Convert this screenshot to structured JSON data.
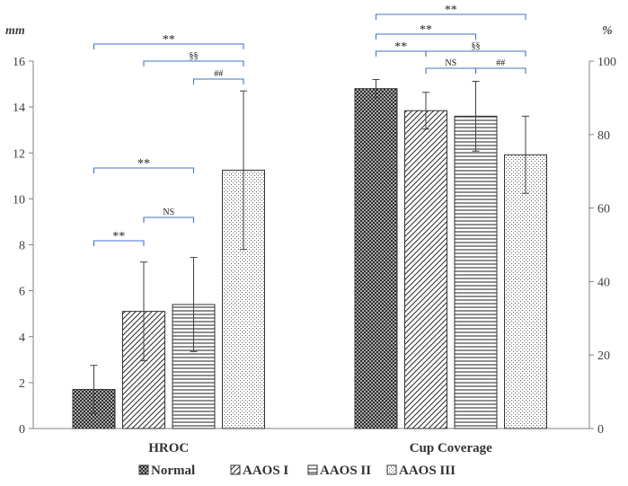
{
  "chart_data": {
    "type": "bar",
    "categories": [
      "HROC",
      "Cup Coverage"
    ],
    "series": [
      {
        "name": "Normal",
        "values": [
          1.7,
          92.5
        ],
        "errors": [
          1.05,
          2.5
        ],
        "pattern": "crosshatch"
      },
      {
        "name": "AAOS I",
        "values": [
          5.1,
          86.5
        ],
        "errors": [
          2.15,
          5.0
        ],
        "pattern": "diagonal"
      },
      {
        "name": "AAOS II",
        "values": [
          5.4,
          85.0
        ],
        "errors": [
          2.05,
          9.5
        ],
        "pattern": "horizontal"
      },
      {
        "name": "AAOS III",
        "values": [
          11.25,
          74.5
        ],
        "errors": [
          3.45,
          10.5
        ],
        "pattern": "dots"
      }
    ],
    "axes": {
      "left": {
        "unit": "mm",
        "min": 0,
        "max": 16,
        "step": 2,
        "ticks": [
          "0",
          "2",
          "4",
          "6",
          "8",
          "10",
          "12",
          "14",
          "16"
        ],
        "applies_to": "HROC"
      },
      "right": {
        "unit": "%",
        "min": 0,
        "max": 100,
        "step": 20,
        "ticks": [
          "0",
          "20",
          "40",
          "60",
          "80",
          "100"
        ],
        "applies_to": "Cup Coverage"
      }
    },
    "significance": [
      {
        "category": "HROC",
        "from": 0,
        "to": 3,
        "label": "**"
      },
      {
        "category": "HROC",
        "from": 1,
        "to": 3,
        "label": "§§"
      },
      {
        "category": "HROC",
        "from": 2,
        "to": 3,
        "label": "##"
      },
      {
        "category": "HROC",
        "from": 0,
        "to": 2,
        "label": "**"
      },
      {
        "category": "HROC",
        "from": 1,
        "to": 2,
        "label": "NS"
      },
      {
        "category": "HROC",
        "from": 0,
        "to": 1,
        "label": "**"
      },
      {
        "category": "Cup Coverage",
        "from": 0,
        "to": 3,
        "label": "**"
      },
      {
        "category": "Cup Coverage",
        "from": 0,
        "to": 2,
        "label": "**"
      },
      {
        "category": "Cup Coverage",
        "from": 0,
        "to": 1,
        "label": "**"
      },
      {
        "category": "Cup Coverage",
        "from": 1,
        "to": 3,
        "label": "§§"
      },
      {
        "category": "Cup Coverage",
        "from": 1,
        "to": 2,
        "label": "NS"
      },
      {
        "category": "Cup Coverage",
        "from": 2,
        "to": 3,
        "label": "##"
      }
    ],
    "legend_position": "bottom",
    "grid": false,
    "colors": {
      "bar_stroke": "#333333",
      "bracket": "#4472C4",
      "axis": "#808080",
      "error_bar": "#404040"
    }
  }
}
